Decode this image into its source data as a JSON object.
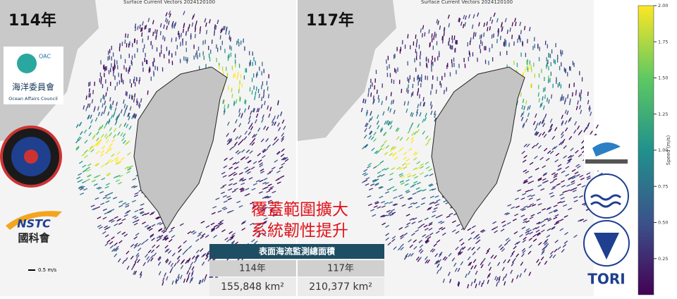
{
  "panels": [
    {
      "label": "114年",
      "title": "Surface Current Vectors 2024120100"
    },
    {
      "label": "117年",
      "title": "Surface Current Vectors 2024120100"
    }
  ],
  "scale_label": "0.5 m/s",
  "headline": [
    "覆蓋範圍擴大",
    "系統韌性提升"
  ],
  "table": {
    "header": "表面海流監測總面積",
    "columns": [
      "114年",
      "117年"
    ],
    "values": [
      "155,848 km²",
      "210,377 km²"
    ]
  },
  "colorbar": {
    "label": "Speed (m/s)",
    "lim": [
      0,
      2
    ],
    "ticks": [
      {
        "value": 0.25,
        "label": "0.25"
      },
      {
        "value": 0.5,
        "label": "0.50"
      },
      {
        "value": 0.75,
        "label": "0.75"
      },
      {
        "value": 1,
        "label": "1.00"
      },
      {
        "value": 1.25,
        "label": "1.25"
      },
      {
        "value": 1.5,
        "label": "1.50"
      },
      {
        "value": 1.75,
        "label": "1.75"
      },
      {
        "value": 2,
        "label": "2.00"
      }
    ]
  },
  "logos": {
    "oac": {
      "abbr": "OAC",
      "name": "海洋委員會",
      "english": "Ocean Affairs Council"
    },
    "nstc": {
      "abbr": "NSTC",
      "name": "國科會"
    },
    "tori": {
      "abbr": "TORI"
    }
  }
}
